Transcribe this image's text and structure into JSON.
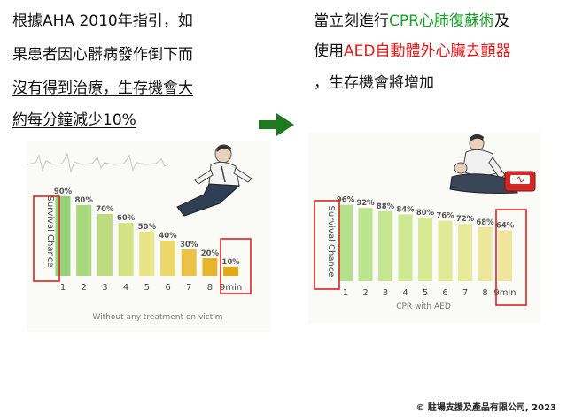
{
  "left_text": {
    "line1": "根據AHA  2010年指引，如",
    "line2": "果患者因心髒病發作倒下而",
    "line3": "沒有得到治療，生存機會大",
    "line4": "約每分鐘減少10%"
  },
  "right_text": {
    "l1_a": "當立刻進行",
    "l1_b": "CPR心肺復蘇術",
    "l1_c": "及",
    "l2_a": "使用",
    "l2_b": "AED自動體外心臟去顫器",
    "l3": "，生存機會將增加"
  },
  "copyright": "© 駐場支援及產品有限公司, 2023",
  "colors": {
    "green_text": "#1a9e2a",
    "red_text": "#e01818",
    "highlight_box": "#e02020"
  },
  "chart_data": [
    {
      "type": "bar",
      "title": "",
      "ylabel": "Survival Chance",
      "xlabel": "Without any treatment on victim",
      "categories": [
        "1",
        "2",
        "3",
        "4",
        "5",
        "6",
        "7",
        "8",
        "9min"
      ],
      "values": [
        90,
        80,
        70,
        60,
        50,
        40,
        30,
        20,
        10
      ],
      "value_labels": [
        "90%",
        "80%",
        "70%",
        "60%",
        "50%",
        "40%",
        "30%",
        "20%",
        "10%"
      ],
      "ylim": [
        0,
        100
      ],
      "grid": false,
      "bar_colors": [
        "#97d27b",
        "#a9d77d",
        "#bcdc7f",
        "#d3e283",
        "#e6e485",
        "#ecd86a",
        "#eac247",
        "#e6b52e",
        "#e2a913"
      ],
      "highlight": [
        "ylabel",
        "last_bar"
      ]
    },
    {
      "type": "bar",
      "title": "",
      "ylabel": "Survival Chance",
      "xlabel": "CPR with AED",
      "categories": [
        "1",
        "2",
        "3",
        "4",
        "5",
        "6",
        "7",
        "8",
        "9min"
      ],
      "values": [
        96,
        92,
        88,
        84,
        80,
        76,
        72,
        68,
        64
      ],
      "value_labels": [
        "96%",
        "92%",
        "88%",
        "84%",
        "80%",
        "76%",
        "72%",
        "68%",
        "64%"
      ],
      "ylim": [
        0,
        100
      ],
      "grid": false,
      "bar_colors": [
        "#b4e28c",
        "#bce48f",
        "#c5e591",
        "#cfe893",
        "#d7e995",
        "#e0e996",
        "#e7ea98",
        "#ece79a",
        "#efe69c"
      ],
      "highlight": [
        "ylabel",
        "last_bar"
      ]
    }
  ]
}
